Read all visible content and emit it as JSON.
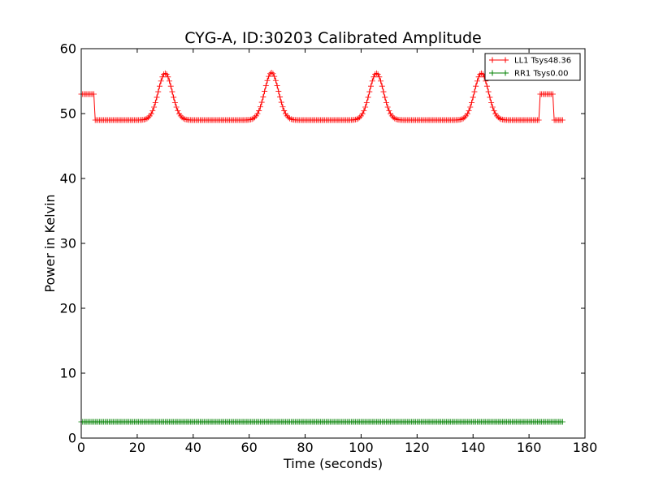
{
  "chart_data": {
    "type": "line",
    "title": "CYG-A, ID:30203 Calibrated Amplitude",
    "xlabel": "Time (seconds)",
    "ylabel": "Power in Kelvin",
    "xlim": [
      0,
      180
    ],
    "ylim": [
      0,
      60
    ],
    "xticks": [
      0,
      20,
      40,
      60,
      80,
      100,
      120,
      140,
      160,
      180
    ],
    "yticks": [
      0,
      10,
      20,
      30,
      40,
      50,
      60
    ],
    "xtick_labels": [
      "0",
      "20",
      "40",
      "60",
      "80",
      "100",
      "120",
      "140",
      "160",
      "180"
    ],
    "ytick_labels": [
      "0",
      "10",
      "20",
      "30",
      "40",
      "50",
      "60"
    ],
    "grid": false,
    "legend_position": "top-right",
    "marker": "plus",
    "series": [
      {
        "name": "LL1 Tsys48.36",
        "color": "#ff0000",
        "x_start": 0,
        "x_end": 172,
        "x_step": 0.5,
        "base_level": 49.0,
        "segments": [
          {
            "from": 0,
            "to": 4.5,
            "level": 53.0
          },
          {
            "from": 164,
            "to": 168.5,
            "level": 53.0
          }
        ],
        "peaks": [
          {
            "center": 30,
            "height": 56.2,
            "width": 2.5
          },
          {
            "center": 68,
            "height": 56.3,
            "width": 2.5
          },
          {
            "center": 105.5,
            "height": 56.2,
            "width": 2.5
          },
          {
            "center": 143,
            "height": 56.2,
            "width": 2.5
          }
        ]
      },
      {
        "name": "RR1 Tsys0.00",
        "color": "#008000",
        "x_start": 0,
        "x_end": 172,
        "x_step": 0.5,
        "base_level": 2.5,
        "segments": [],
        "peaks": []
      }
    ]
  }
}
